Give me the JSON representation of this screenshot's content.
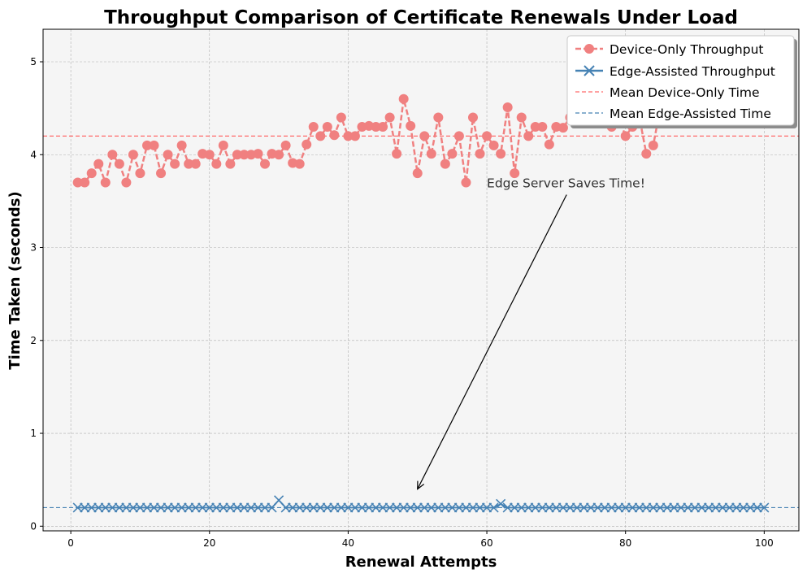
{
  "chart_data": {
    "type": "line",
    "title": "Throughput Comparison of Certificate Renewals Under Load",
    "xlabel": "Renewal Attempts",
    "ylabel": "Time Taken (seconds)",
    "xlim": [
      -4,
      105
    ],
    "ylim": [
      -0.05,
      5.35
    ],
    "xticks": [
      0,
      20,
      40,
      60,
      80,
      100
    ],
    "yticks": [
      0,
      1,
      2,
      3,
      4,
      5
    ],
    "grid": true,
    "legend_position": "top-right",
    "x": [
      1,
      2,
      3,
      4,
      5,
      6,
      7,
      8,
      9,
      10,
      11,
      12,
      13,
      14,
      15,
      16,
      17,
      18,
      19,
      20,
      21,
      22,
      23,
      24,
      25,
      26,
      27,
      28,
      29,
      30,
      31,
      32,
      33,
      34,
      35,
      36,
      37,
      38,
      39,
      40,
      41,
      42,
      43,
      44,
      45,
      46,
      47,
      48,
      49,
      50,
      51,
      52,
      53,
      54,
      55,
      56,
      57,
      58,
      59,
      60,
      61,
      62,
      63,
      64,
      65,
      66,
      67,
      68,
      69,
      70,
      71,
      72,
      73,
      74,
      75,
      76,
      77,
      78,
      79,
      80,
      81,
      82,
      83,
      84,
      85,
      86,
      87,
      88,
      89,
      90,
      91,
      92,
      93,
      94,
      95,
      96,
      97,
      98,
      99,
      100
    ],
    "series": [
      {
        "name": "Device-Only Throughput",
        "color": "#f08080",
        "style": "dashed",
        "marker": "circle",
        "values": [
          3.7,
          3.7,
          3.8,
          3.9,
          3.7,
          4.0,
          3.9,
          3.7,
          4.0,
          3.8,
          4.1,
          4.1,
          3.8,
          4.0,
          3.9,
          4.1,
          3.9,
          3.9,
          4.01,
          4.0,
          3.9,
          4.1,
          3.9,
          4.0,
          4.0,
          4.0,
          4.01,
          3.9,
          4.01,
          4.0,
          4.1,
          3.91,
          3.9,
          4.11,
          4.3,
          4.2,
          4.3,
          4.21,
          4.4,
          4.2,
          4.2,
          4.3,
          4.31,
          4.3,
          4.3,
          4.4,
          4.01,
          4.6,
          4.31,
          3.8,
          4.2,
          4.01,
          4.4,
          3.9,
          4.01,
          4.2,
          3.7,
          4.4,
          4.01,
          4.2,
          4.1,
          4.01,
          4.51,
          3.8,
          4.4,
          4.2,
          4.3,
          4.3,
          4.11,
          4.3,
          4.29,
          4.4,
          4.4,
          4.4,
          4.4,
          4.4,
          4.4,
          4.3,
          4.4,
          4.2,
          4.3,
          4.4,
          4.01,
          4.1,
          4.5,
          4.4,
          4.4,
          4.4,
          4.4,
          4.4,
          4.4,
          4.4,
          4.4,
          4.4,
          4.4,
          4.4,
          4.4,
          4.4,
          4.4,
          4.4
        ]
      },
      {
        "name": "Edge-Assisted Throughput",
        "color": "#4682b4",
        "style": "solid",
        "marker": "x",
        "values": [
          0.2,
          0.2,
          0.2,
          0.2,
          0.2,
          0.2,
          0.2,
          0.2,
          0.2,
          0.2,
          0.2,
          0.2,
          0.2,
          0.2,
          0.2,
          0.2,
          0.2,
          0.2,
          0.2,
          0.2,
          0.2,
          0.2,
          0.2,
          0.2,
          0.2,
          0.2,
          0.2,
          0.2,
          0.2,
          0.28,
          0.2,
          0.2,
          0.2,
          0.2,
          0.2,
          0.2,
          0.2,
          0.2,
          0.2,
          0.2,
          0.2,
          0.2,
          0.2,
          0.2,
          0.2,
          0.2,
          0.2,
          0.2,
          0.2,
          0.2,
          0.2,
          0.2,
          0.2,
          0.2,
          0.2,
          0.2,
          0.2,
          0.2,
          0.2,
          0.2,
          0.2,
          0.24,
          0.2,
          0.2,
          0.2,
          0.2,
          0.2,
          0.2,
          0.2,
          0.2,
          0.2,
          0.2,
          0.2,
          0.2,
          0.2,
          0.2,
          0.2,
          0.2,
          0.2,
          0.2,
          0.2,
          0.2,
          0.2,
          0.2,
          0.2,
          0.2,
          0.2,
          0.2,
          0.2,
          0.2,
          0.2,
          0.2,
          0.2,
          0.2,
          0.2,
          0.2,
          0.2,
          0.2,
          0.2,
          0.2
        ]
      }
    ],
    "reference_lines": [
      {
        "name": "Mean Device-Only Time",
        "value": 4.2,
        "color": "#ff6b6b"
      },
      {
        "name": "Mean Edge-Assisted Time",
        "value": 0.2,
        "color": "#4682b4"
      }
    ],
    "annotation": {
      "text": "Edge Server Saves Time!",
      "text_at": [
        60,
        3.7
      ],
      "arrow_to": [
        50,
        0.4
      ]
    }
  }
}
